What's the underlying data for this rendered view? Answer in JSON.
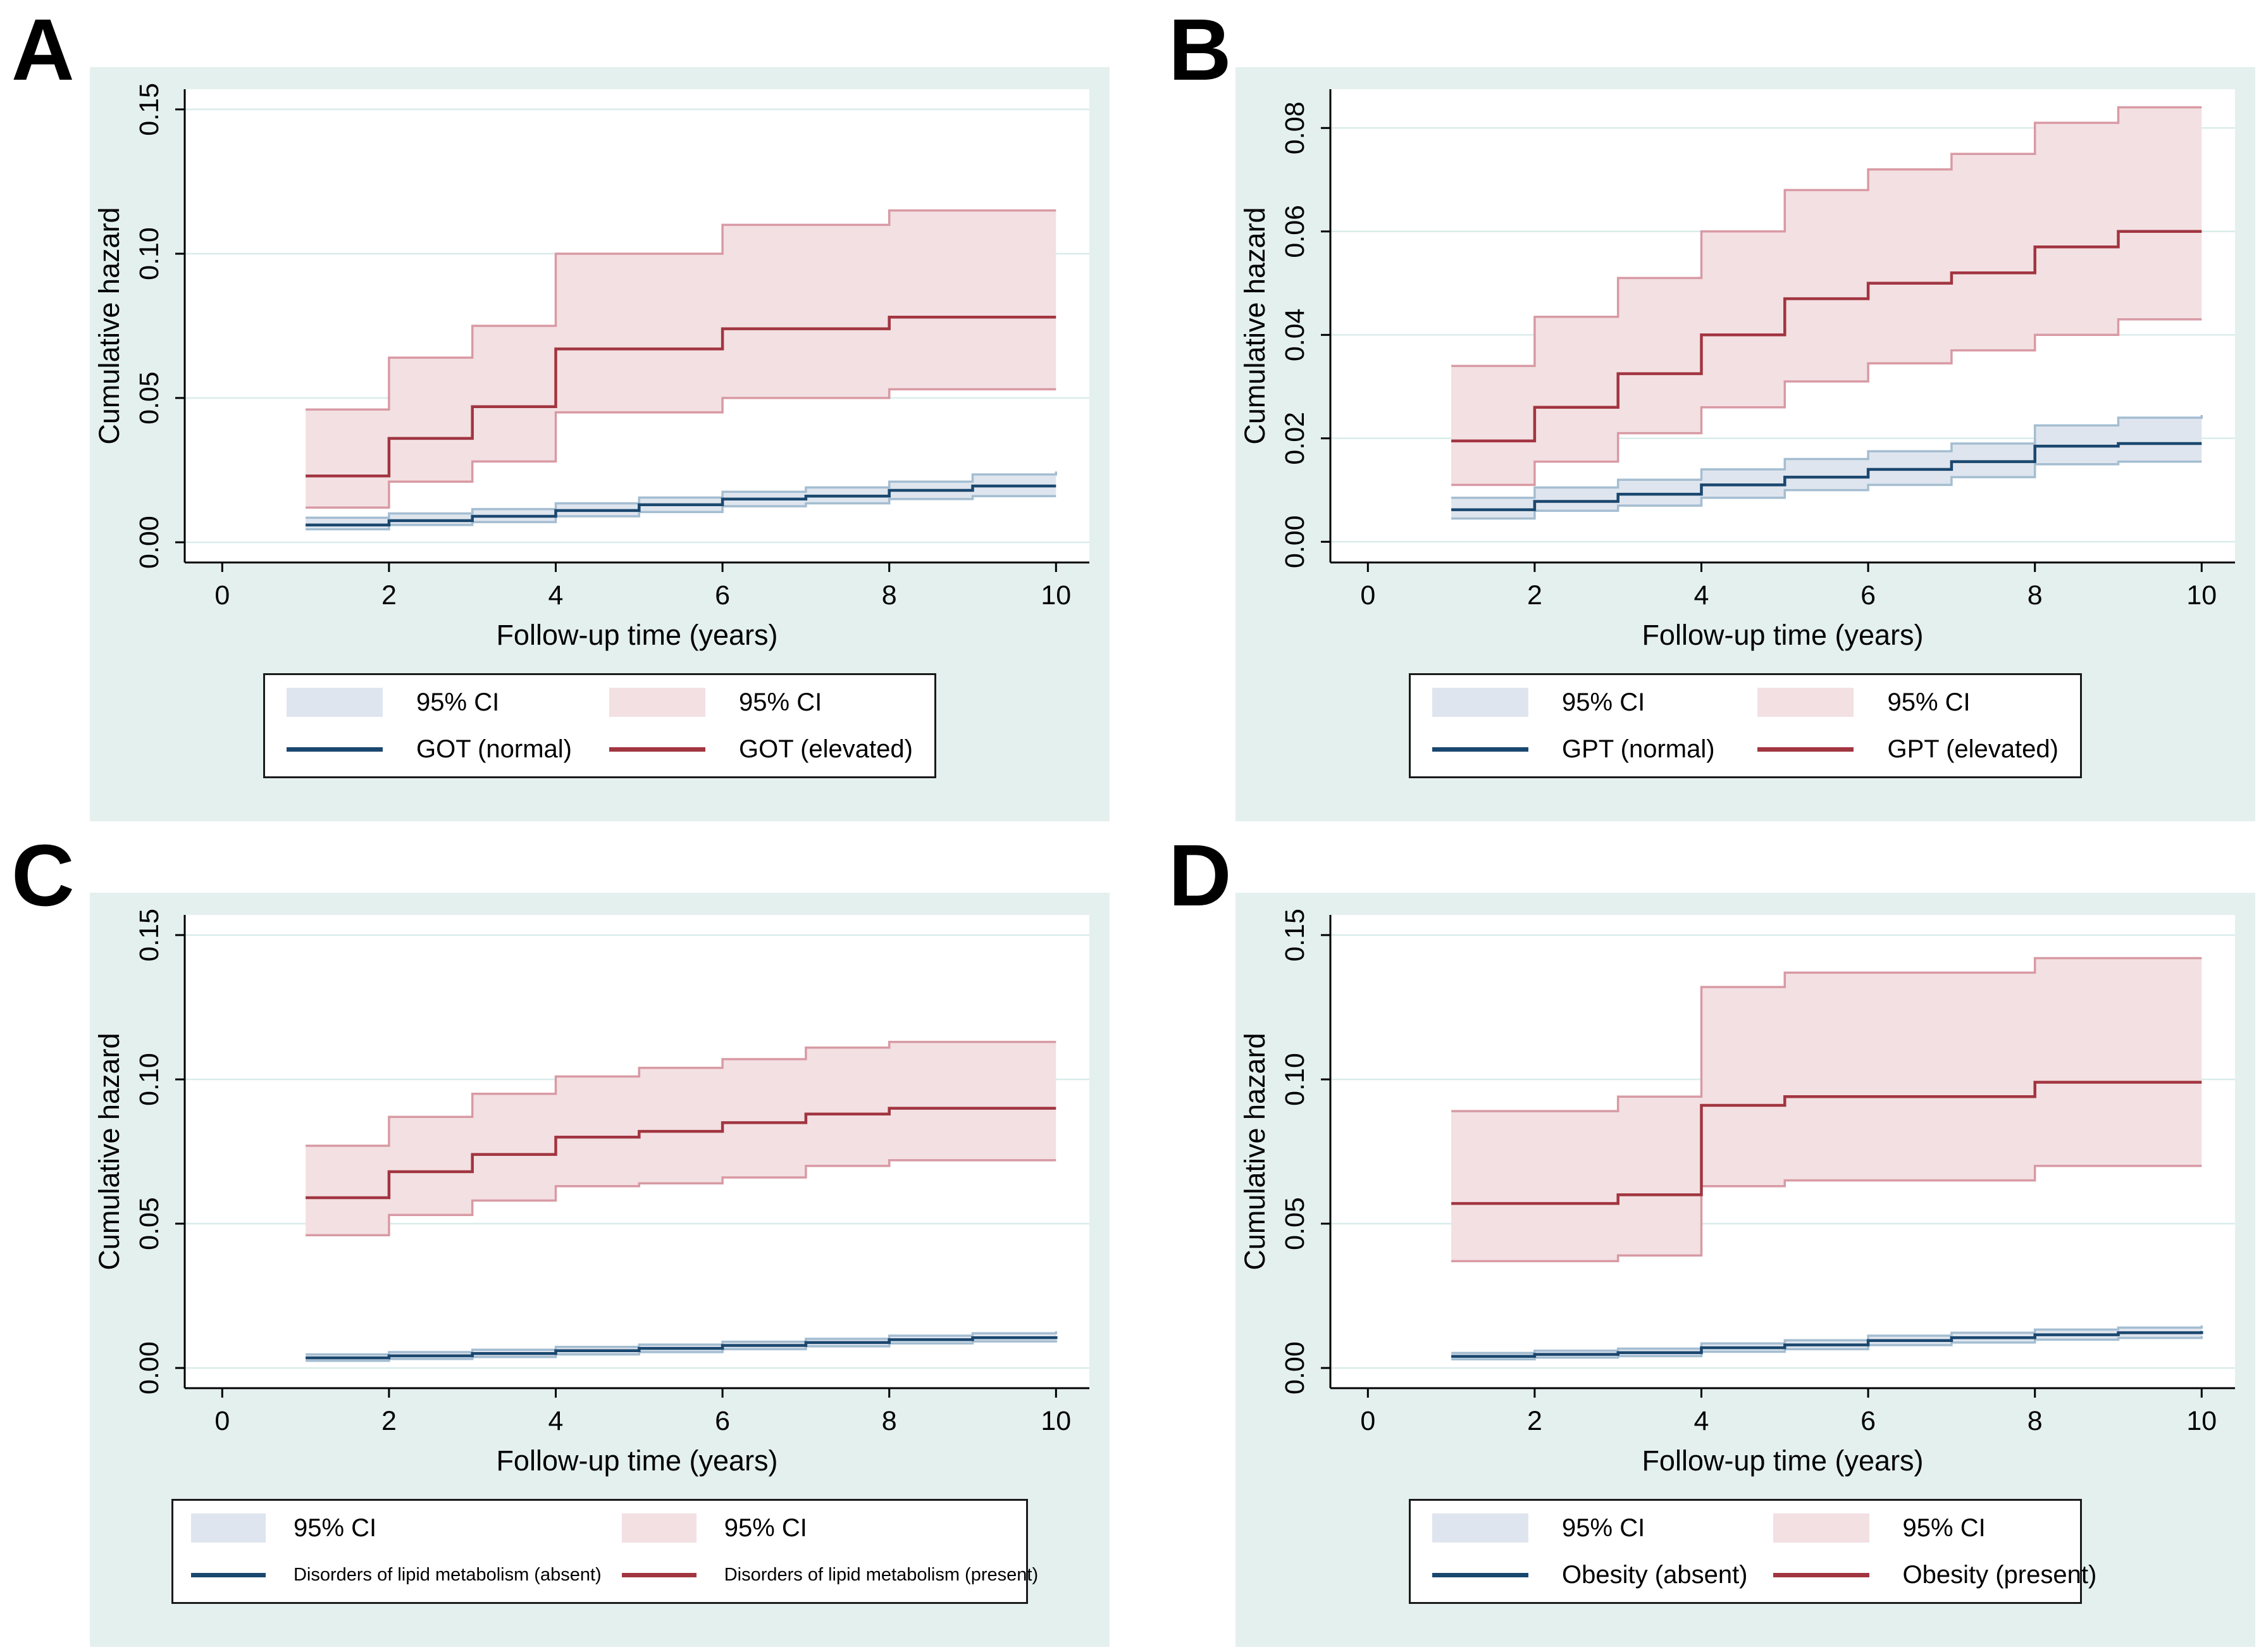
{
  "panels": [
    {
      "letter": "A"
    },
    {
      "letter": "B"
    },
    {
      "letter": "C"
    },
    {
      "letter": "D"
    }
  ],
  "colors": {
    "panel_background": "#e4f0ee",
    "plot_background": "#ffffff",
    "gridline": "#d9ecea",
    "axis": "#000000",
    "blue_line": "#1a476f",
    "blue_band_fill": "#dfe5ee",
    "blue_band_edge": "#a4bdd1",
    "red_line": "#a13540",
    "red_band_fill": "#f3e0e2",
    "red_band_edge": "#d89aa4",
    "legend_background": "#ffffff",
    "legend_border": "#1a1a1a"
  },
  "chart_data": [
    {
      "panel": "A",
      "type": "line",
      "subtype": "step-cumulative-hazard",
      "xlabel": "Follow-up time (years)",
      "ylabel": "Cumulative hazard",
      "x_ticks": [
        0,
        2,
        4,
        6,
        8,
        10
      ],
      "y_ticks": [
        "0.00",
        "0.05",
        "0.10",
        "0.15"
      ],
      "y_tick_values": [
        0,
        0.05,
        0.1,
        0.15
      ],
      "xlim": [
        -0.45,
        10.4
      ],
      "ylim": [
        -0.007,
        0.157
      ],
      "grid": true,
      "legend_position": "bottom",
      "x": [
        1,
        2,
        3,
        4,
        5,
        6,
        7,
        8,
        9,
        10
      ],
      "series": [
        {
          "name": "GOT (normal)",
          "color": "blue",
          "values": [
            0.006,
            0.0075,
            0.009,
            0.011,
            0.013,
            0.015,
            0.016,
            0.018,
            0.0195,
            0.0195
          ],
          "upper": [
            0.0085,
            0.01,
            0.0115,
            0.0135,
            0.0155,
            0.0175,
            0.019,
            0.021,
            0.0235,
            0.0245
          ],
          "lower": [
            0.0045,
            0.006,
            0.007,
            0.009,
            0.0105,
            0.0125,
            0.0135,
            0.015,
            0.016,
            0.016
          ]
        },
        {
          "name": "GOT (elevated)",
          "color": "red",
          "values": [
            0.023,
            0.036,
            0.047,
            0.067,
            0.067,
            0.074,
            0.074,
            0.078,
            0.078,
            0.078
          ],
          "upper": [
            0.046,
            0.064,
            0.075,
            0.1,
            0.1,
            0.11,
            0.11,
            0.115,
            0.115,
            0.115
          ],
          "lower": [
            0.012,
            0.021,
            0.028,
            0.045,
            0.045,
            0.05,
            0.05,
            0.053,
            0.053,
            0.053
          ]
        }
      ],
      "legend": {
        "ci_left": "95% CI",
        "ci_right": "95% CI",
        "line_left": "GOT (normal)",
        "line_right": "GOT (elevated)"
      }
    },
    {
      "panel": "B",
      "type": "line",
      "subtype": "step-cumulative-hazard",
      "xlabel": "Follow-up time (years)",
      "ylabel": "Cumulative hazard",
      "x_ticks": [
        0,
        2,
        4,
        6,
        8,
        10
      ],
      "y_ticks": [
        "0.00",
        "0.02",
        "0.04",
        "0.06",
        "0.08"
      ],
      "y_tick_values": [
        0,
        0.02,
        0.04,
        0.06,
        0.08
      ],
      "xlim": [
        -0.45,
        10.4
      ],
      "ylim": [
        -0.004,
        0.0875
      ],
      "grid": true,
      "legend_position": "bottom",
      "x": [
        1,
        2,
        3,
        4,
        5,
        6,
        7,
        8,
        9,
        10
      ],
      "series": [
        {
          "name": "GPT (normal)",
          "color": "blue",
          "values": [
            0.0062,
            0.0078,
            0.0092,
            0.011,
            0.0125,
            0.014,
            0.0155,
            0.0185,
            0.019,
            0.019
          ],
          "upper": [
            0.0085,
            0.0105,
            0.012,
            0.014,
            0.016,
            0.0175,
            0.019,
            0.0225,
            0.024,
            0.0245
          ],
          "lower": [
            0.0045,
            0.006,
            0.007,
            0.0085,
            0.01,
            0.011,
            0.0125,
            0.015,
            0.0155,
            0.0155
          ]
        },
        {
          "name": "GPT (elevated)",
          "color": "red",
          "values": [
            0.0195,
            0.026,
            0.0325,
            0.04,
            0.047,
            0.05,
            0.052,
            0.057,
            0.06,
            0.06
          ],
          "upper": [
            0.034,
            0.0435,
            0.051,
            0.06,
            0.068,
            0.072,
            0.075,
            0.081,
            0.084,
            0.084
          ],
          "lower": [
            0.011,
            0.0155,
            0.021,
            0.026,
            0.031,
            0.0345,
            0.037,
            0.04,
            0.043,
            0.043
          ]
        }
      ],
      "legend": {
        "ci_left": "95% CI",
        "ci_right": "95% CI",
        "line_left": "GPT (normal)",
        "line_right": "GPT (elevated)"
      }
    },
    {
      "panel": "C",
      "type": "line",
      "subtype": "step-cumulative-hazard",
      "xlabel": "Follow-up time (years)",
      "ylabel": "Cumulative hazard",
      "x_ticks": [
        0,
        2,
        4,
        6,
        8,
        10
      ],
      "y_ticks": [
        "0.00",
        "0.05",
        "0.10",
        "0.15"
      ],
      "y_tick_values": [
        0,
        0.05,
        0.1,
        0.15
      ],
      "xlim": [
        -0.45,
        10.4
      ],
      "ylim": [
        -0.007,
        0.157
      ],
      "grid": true,
      "legend_position": "bottom",
      "x": [
        1,
        2,
        3,
        4,
        5,
        6,
        7,
        8,
        9,
        10
      ],
      "series": [
        {
          "name": "Disorders of lipid metabolism (absent)",
          "color": "blue",
          "values": [
            0.0035,
            0.0042,
            0.005,
            0.006,
            0.0068,
            0.0078,
            0.0088,
            0.0098,
            0.0105,
            0.011
          ],
          "upper": [
            0.0047,
            0.0055,
            0.0063,
            0.0073,
            0.0081,
            0.0091,
            0.0101,
            0.0112,
            0.012,
            0.0127
          ],
          "lower": [
            0.0025,
            0.0031,
            0.0038,
            0.0047,
            0.0055,
            0.0065,
            0.0075,
            0.0085,
            0.0092,
            0.0096
          ]
        },
        {
          "name": "Disorders of lipid metabolism (present)",
          "color": "red",
          "values": [
            0.059,
            0.068,
            0.074,
            0.08,
            0.082,
            0.085,
            0.088,
            0.09,
            0.09,
            0.09
          ],
          "upper": [
            0.077,
            0.087,
            0.095,
            0.101,
            0.104,
            0.107,
            0.111,
            0.113,
            0.113,
            0.113
          ],
          "lower": [
            0.046,
            0.053,
            0.058,
            0.063,
            0.064,
            0.066,
            0.07,
            0.072,
            0.072,
            0.072
          ]
        }
      ],
      "legend": {
        "ci_left": "95% CI",
        "ci_right": "95% CI",
        "line_left": "Disorders of lipid metabolism (absent)",
        "line_right": "Disorders of lipid metabolism (present)"
      }
    },
    {
      "panel": "D",
      "type": "line",
      "subtype": "step-cumulative-hazard",
      "xlabel": "Follow-up time (years)",
      "ylabel": "Cumulative hazard",
      "x_ticks": [
        0,
        2,
        4,
        6,
        8,
        10
      ],
      "y_ticks": [
        "0.00",
        "0.05",
        "0.10",
        "0.15"
      ],
      "y_tick_values": [
        0,
        0.05,
        0.1,
        0.15
      ],
      "xlim": [
        -0.45,
        10.4
      ],
      "ylim": [
        -0.007,
        0.157
      ],
      "grid": true,
      "legend_position": "bottom",
      "x": [
        1,
        2,
        3,
        4,
        5,
        6,
        7,
        8,
        9,
        10
      ],
      "series": [
        {
          "name": "Obesity (absent)",
          "color": "blue",
          "values": [
            0.004,
            0.0047,
            0.0053,
            0.007,
            0.008,
            0.0095,
            0.0105,
            0.0115,
            0.0122,
            0.0128
          ],
          "upper": [
            0.0052,
            0.006,
            0.0067,
            0.0085,
            0.0096,
            0.0112,
            0.0122,
            0.0133,
            0.014,
            0.0147
          ],
          "lower": [
            0.003,
            0.0036,
            0.0041,
            0.0056,
            0.0065,
            0.0079,
            0.0088,
            0.0098,
            0.0104,
            0.011
          ]
        },
        {
          "name": "Obesity (present)",
          "color": "red",
          "values": [
            0.057,
            0.057,
            0.06,
            0.091,
            0.094,
            0.094,
            0.094,
            0.099,
            0.099,
            0.099
          ],
          "upper": [
            0.089,
            0.089,
            0.094,
            0.132,
            0.137,
            0.137,
            0.137,
            0.142,
            0.142,
            0.142
          ],
          "lower": [
            0.037,
            0.037,
            0.039,
            0.063,
            0.065,
            0.065,
            0.065,
            0.07,
            0.07,
            0.07
          ]
        }
      ],
      "legend": {
        "ci_left": "95% CI",
        "ci_right": "95% CI",
        "line_left": "Obesity (absent)",
        "line_right": "Obesity (present)"
      }
    }
  ]
}
